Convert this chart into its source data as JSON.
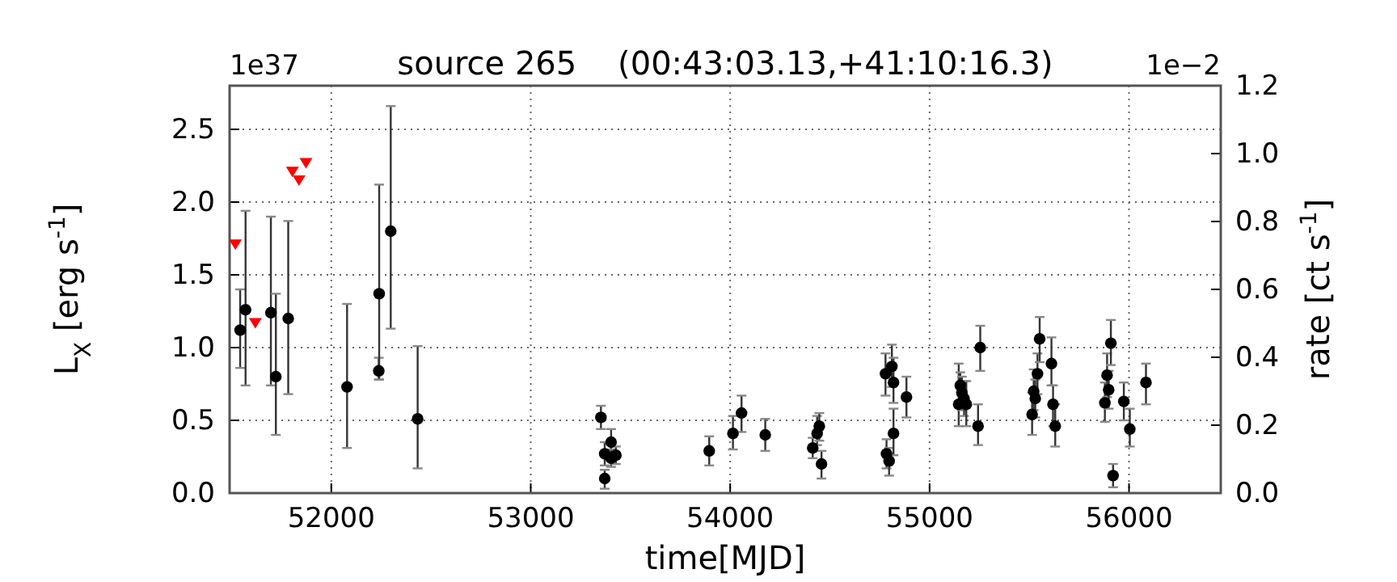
{
  "chart_data": {
    "type": "scatter",
    "title": "source 265    (00:43:03.13,+41:10:16.3)",
    "xlabel": "time[MJD]",
    "ylabel": "L$_{X}$ [erg s$^{-1}$]",
    "y2label": "rate [ct s$^{-1}$]",
    "annotations": [
      "1e37",
      "1e−2"
    ],
    "xlim": [
      51490,
      56460
    ],
    "xticks": [
      52000,
      53000,
      54000,
      55000,
      56000
    ],
    "ylim": [
      0,
      2.8
    ],
    "yticks": [
      {
        "value": 0,
        "label": "0.0"
      },
      {
        "value": 0.5,
        "label": "0.5"
      },
      {
        "value": 1,
        "label": "1.0"
      },
      {
        "value": 1.5,
        "label": "1.5"
      },
      {
        "value": 2,
        "label": "2.0"
      },
      {
        "value": 2.5,
        "label": "2.5"
      }
    ],
    "y2lim": [
      0,
      1.2
    ],
    "y2ticks": [
      {
        "value": 0,
        "label": "0.0"
      },
      {
        "value": 0.2,
        "label": "0.2"
      },
      {
        "value": 0.4,
        "label": "0.4"
      },
      {
        "value": 0.6,
        "label": "0.6"
      },
      {
        "value": 0.8,
        "label": "0.8"
      },
      {
        "value": 1,
        "label": "1.0"
      },
      {
        "value": 1.2,
        "label": "1.2"
      }
    ],
    "grid": true,
    "series": [
      {
        "color": "#000000",
        "marker": "circle",
        "x": [
          51543,
          51570,
          51697,
          51722,
          51784,
          52079,
          52238,
          52240,
          52298,
          52433,
          53352,
          53371,
          53371,
          53403,
          53403,
          53427,
          53895,
          54014,
          54057,
          54176,
          54414,
          54436,
          54447,
          54458,
          54779,
          54784,
          54797,
          54811,
          54819,
          54819,
          54884,
          55146,
          55154,
          55162,
          55173,
          55184,
          55243,
          55254,
          55514,
          55522,
          55530,
          55541,
          55552,
          55611,
          55619,
          55630,
          55879,
          55890,
          55898,
          55909,
          55920,
          55974,
          56004,
          56085
        ],
        "values": [
          1.12,
          1.26,
          1.24,
          0.8,
          1.2,
          0.73,
          0.84,
          1.37,
          1.8,
          0.51,
          0.52,
          0.27,
          0.1,
          0.35,
          0.24,
          0.26,
          0.29,
          0.41,
          0.55,
          0.4,
          0.31,
          0.41,
          0.46,
          0.2,
          0.82,
          0.27,
          0.22,
          0.87,
          0.76,
          0.41,
          0.66,
          0.61,
          0.74,
          0.69,
          0.65,
          0.61,
          0.46,
          1.0,
          0.54,
          0.7,
          0.65,
          0.82,
          1.06,
          0.89,
          0.61,
          0.46,
          0.62,
          0.81,
          0.71,
          1.03,
          0.12,
          0.63,
          0.44,
          0.76
        ],
        "errors": [
          [
            0.86,
            1.4
          ],
          [
            0.74,
            1.94
          ],
          [
            0.74,
            1.9
          ],
          [
            0.4,
            1.37
          ],
          [
            0.68,
            1.87
          ],
          [
            0.31,
            1.3
          ],
          [
            0.78,
            0.93
          ],
          [
            0.78,
            2.12
          ],
          [
            1.13,
            2.66
          ],
          [
            0.17,
            1.01
          ],
          [
            0.44,
            0.6
          ],
          [
            0.19,
            0.35
          ],
          [
            0.03,
            0.16
          ],
          [
            0.27,
            0.44
          ],
          [
            0.18,
            0.3
          ],
          [
            0.2,
            0.32
          ],
          [
            0.19,
            0.39
          ],
          [
            0.3,
            0.53
          ],
          [
            0.42,
            0.67
          ],
          [
            0.29,
            0.51
          ],
          [
            0.24,
            0.38
          ],
          [
            0.33,
            0.53
          ],
          [
            0.36,
            0.55
          ],
          [
            0.1,
            0.29
          ],
          [
            0.67,
            0.96
          ],
          [
            0.17,
            0.37
          ],
          [
            0.12,
            0.31
          ],
          [
            0.73,
            1.02
          ],
          [
            0.62,
            0.93
          ],
          [
            0.26,
            0.58
          ],
          [
            0.52,
            0.8
          ],
          [
            0.46,
            0.89
          ],
          [
            0.61,
            0.83
          ],
          [
            0.57,
            0.8
          ],
          [
            0.53,
            0.77
          ],
          [
            0.46,
            0.77
          ],
          [
            0.33,
            0.61
          ],
          [
            0.84,
            1.15
          ],
          [
            0.4,
            0.69
          ],
          [
            0.57,
            0.85
          ],
          [
            0.52,
            0.78
          ],
          [
            0.68,
            0.96
          ],
          [
            0.9,
            1.21
          ],
          [
            0.74,
            1.07
          ],
          [
            0.46,
            0.74
          ],
          [
            0.32,
            0.61
          ],
          [
            0.49,
            0.76
          ],
          [
            0.66,
            0.96
          ],
          [
            0.58,
            0.84
          ],
          [
            0.88,
            1.19
          ],
          [
            0.04,
            0.2
          ],
          [
            0.5,
            0.76
          ],
          [
            0.32,
            0.58
          ],
          [
            0.61,
            0.89
          ]
        ]
      },
      {
        "color": "#ff0000",
        "marker": "triangle",
        "x": [
          51519,
          51619,
          51805,
          51838,
          51873
        ],
        "values": [
          1.71,
          1.17,
          2.21,
          2.15,
          2.27
        ]
      }
    ]
  }
}
